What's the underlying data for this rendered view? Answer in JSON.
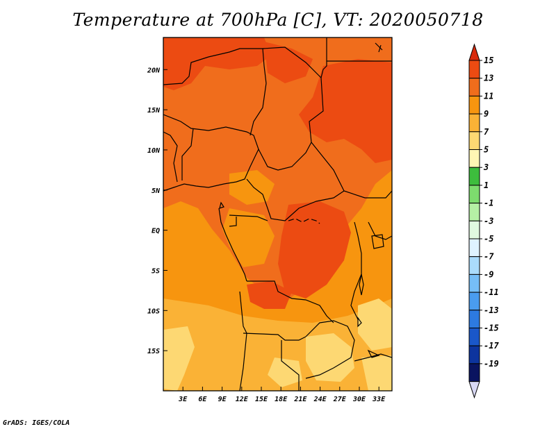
{
  "title": "Temperature at 700hPa [C], VT: 2020050718",
  "credit": "GrADS: IGES/COLA",
  "map": {
    "region": "Central Africa",
    "lon_range": [
      0,
      35
    ],
    "lat_range": [
      -20,
      24
    ],
    "lon_ticks": [
      {
        "value": 3,
        "label": "3E"
      },
      {
        "value": 6,
        "label": "6E"
      },
      {
        "value": 9,
        "label": "9E"
      },
      {
        "value": 12,
        "label": "12E"
      },
      {
        "value": 15,
        "label": "15E"
      },
      {
        "value": 18,
        "label": "18E"
      },
      {
        "value": 21,
        "label": "21E"
      },
      {
        "value": 24,
        "label": "24E"
      },
      {
        "value": 27,
        "label": "27E"
      },
      {
        "value": 30,
        "label": "30E"
      },
      {
        "value": 33,
        "label": "33E"
      }
    ],
    "lat_ticks": [
      {
        "value": 20,
        "label": "20N"
      },
      {
        "value": 15,
        "label": "15N"
      },
      {
        "value": 10,
        "label": "10N"
      },
      {
        "value": 5,
        "label": "5N"
      },
      {
        "value": 0,
        "label": "EQ"
      },
      {
        "value": -5,
        "label": "5S"
      },
      {
        "value": -10,
        "label": "10S"
      },
      {
        "value": -15,
        "label": "15S"
      }
    ]
  },
  "colorbar": {
    "levels": [
      "15",
      "13",
      "11",
      "9",
      "7",
      "5",
      "3",
      "1",
      "-1",
      "-3",
      "-5",
      "-7",
      "-9",
      "-11",
      "-13",
      "-15",
      "-17",
      "-19"
    ],
    "colors": [
      "#d92a0c",
      "#ec4b12",
      "#f06d1c",
      "#f7950f",
      "#fab236",
      "#fdd873",
      "#fff6b4",
      "#3dbd3d",
      "#7ddc6e",
      "#b5f0a5",
      "#e0f9e0",
      "#dff3ff",
      "#aadcfc",
      "#76bef7",
      "#4a9cef",
      "#2d7ae0",
      "#1a57c9",
      "#0d349e",
      "#0a1460",
      "#d8d8f4"
    ]
  },
  "temperature_fields": [
    {
      "name": "field-11-13",
      "color": "#f06d1c"
    },
    {
      "name": "field-13-15",
      "color": "#ec4b12"
    },
    {
      "name": "field-9-11",
      "color": "#f7950f"
    },
    {
      "name": "field-7-9",
      "color": "#fab236"
    },
    {
      "name": "field-5-7",
      "color": "#fdd873"
    }
  ]
}
